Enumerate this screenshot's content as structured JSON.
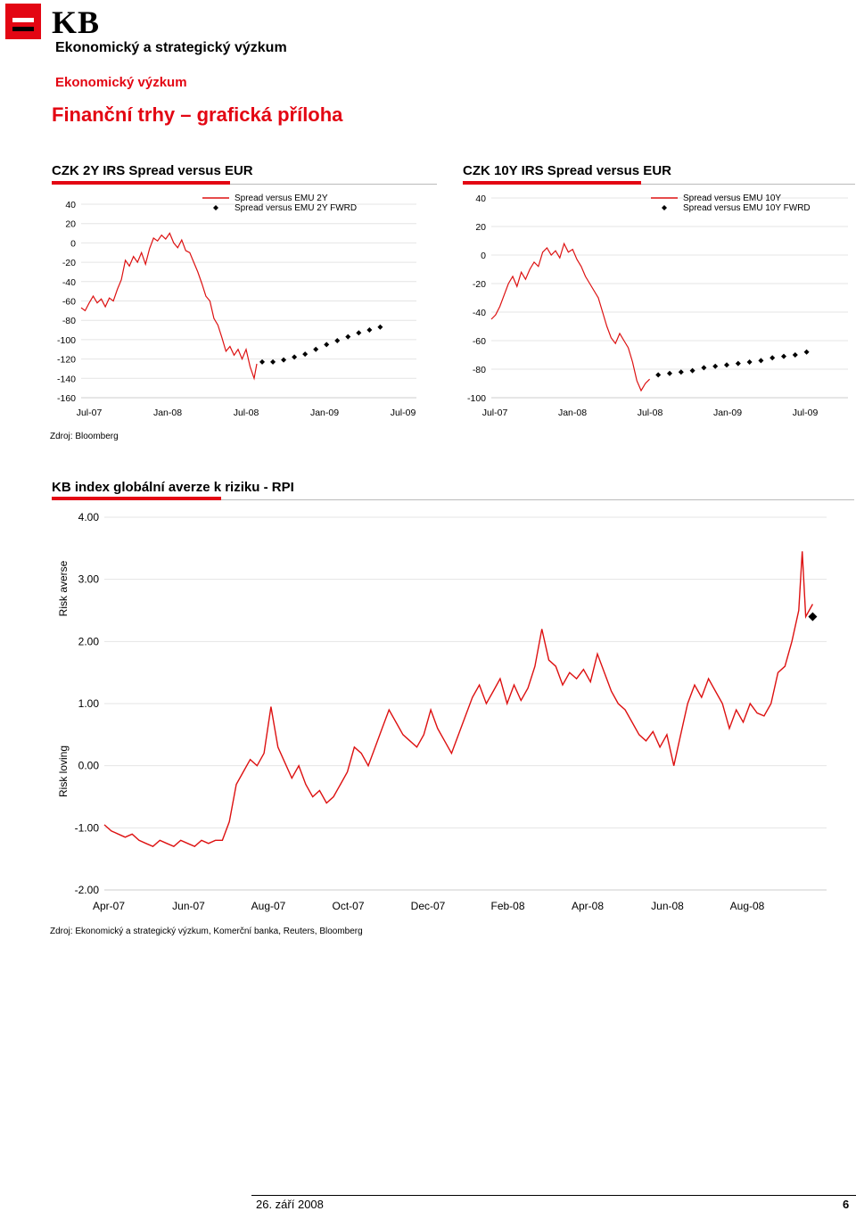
{
  "header": {
    "logo": "KB",
    "dept": "Ekonomický a strategický výzkum",
    "subdept": "Ekonomický výzkum",
    "title": "Finanční trhy – grafická příloha"
  },
  "colors": {
    "accent": "#e30613",
    "series": "#dd1111",
    "fwrd": "#000000"
  },
  "charts": {
    "left_title": "CZK 2Y IRS Spread versus EUR",
    "right_title": "CZK 10Y IRS Spread versus EUR",
    "bottom_title": "KB index globální averze k riziku - RPI",
    "source_top": "Zdroj: Bloomberg",
    "source_bottom": "Zdroj: Ekonomický a strategický výzkum, Komerční banka, Reuters, Bloomberg"
  },
  "footer": {
    "date": "26. září 2008",
    "page": "6"
  },
  "chart_data": [
    {
      "type": "line",
      "title": "CZK 2Y IRS Spread versus EUR",
      "x_ticks": [
        "Jul-07",
        "Jan-08",
        "Jul-08",
        "Jan-09",
        "Jul-09"
      ],
      "y_ticks": [
        "40",
        "20",
        "0",
        "-20",
        "-40",
        "-60",
        "-80",
        "-100",
        "-120",
        "-140",
        "-160"
      ],
      "ylim": [
        -160,
        40
      ],
      "grid": true,
      "legend_position": "top-right",
      "series": [
        {
          "name": "Spread versus EMU 2Y",
          "style": "line",
          "points": [
            [
              0,
              -67
            ],
            [
              0.03,
              -70
            ],
            [
              0.06,
              -62
            ],
            [
              0.09,
              -55
            ],
            [
              0.12,
              -62
            ],
            [
              0.15,
              -58
            ],
            [
              0.18,
              -66
            ],
            [
              0.21,
              -57
            ],
            [
              0.24,
              -60
            ],
            [
              0.27,
              -48
            ],
            [
              0.3,
              -38
            ],
            [
              0.33,
              -18
            ],
            [
              0.36,
              -24
            ],
            [
              0.39,
              -14
            ],
            [
              0.42,
              -20
            ],
            [
              0.45,
              -10
            ],
            [
              0.48,
              -22
            ],
            [
              0.51,
              -6
            ],
            [
              0.54,
              5
            ],
            [
              0.57,
              2
            ],
            [
              0.6,
              8
            ],
            [
              0.63,
              4
            ],
            [
              0.66,
              10
            ],
            [
              0.69,
              0
            ],
            [
              0.72,
              -5
            ],
            [
              0.75,
              3
            ],
            [
              0.78,
              -8
            ],
            [
              0.81,
              -10
            ],
            [
              0.84,
              -20
            ],
            [
              0.87,
              -30
            ],
            [
              0.9,
              -42
            ],
            [
              0.93,
              -55
            ],
            [
              0.96,
              -60
            ],
            [
              0.99,
              -78
            ],
            [
              1.02,
              -85
            ],
            [
              1.05,
              -98
            ],
            [
              1.08,
              -112
            ],
            [
              1.11,
              -107
            ],
            [
              1.14,
              -116
            ],
            [
              1.17,
              -110
            ],
            [
              1.2,
              -120
            ],
            [
              1.23,
              -110
            ],
            [
              1.26,
              -128
            ],
            [
              1.29,
              -140
            ],
            [
              1.31,
              -125
            ]
          ]
        },
        {
          "name": "Spread versus EMU 2Y FWRD",
          "style": "marker",
          "points": [
            [
              1.35,
              -123
            ],
            [
              1.43,
              -123
            ],
            [
              1.51,
              -121
            ],
            [
              1.59,
              -118
            ],
            [
              1.67,
              -115
            ],
            [
              1.75,
              -110
            ],
            [
              1.83,
              -105
            ],
            [
              1.91,
              -101
            ],
            [
              1.99,
              -97
            ],
            [
              2.07,
              -93
            ],
            [
              2.15,
              -90
            ],
            [
              2.23,
              -87
            ]
          ]
        }
      ]
    },
    {
      "type": "line",
      "title": "CZK 10Y IRS Spread versus EUR",
      "x_ticks": [
        "Jul-07",
        "Jan-08",
        "Jul-08",
        "Jan-09",
        "Jul-09"
      ],
      "y_ticks": [
        "40",
        "20",
        "0",
        "-20",
        "-40",
        "-60",
        "-80",
        "-100"
      ],
      "ylim": [
        -100,
        40
      ],
      "grid": true,
      "legend_position": "top-right",
      "series": [
        {
          "name": "Spread versus EMU 10Y",
          "style": "line",
          "points": [
            [
              0,
              -45
            ],
            [
              0.03,
              -42
            ],
            [
              0.06,
              -36
            ],
            [
              0.09,
              -28
            ],
            [
              0.12,
              -20
            ],
            [
              0.15,
              -15
            ],
            [
              0.18,
              -22
            ],
            [
              0.21,
              -12
            ],
            [
              0.24,
              -17
            ],
            [
              0.27,
              -10
            ],
            [
              0.3,
              -5
            ],
            [
              0.33,
              -8
            ],
            [
              0.36,
              2
            ],
            [
              0.39,
              5
            ],
            [
              0.42,
              0
            ],
            [
              0.45,
              3
            ],
            [
              0.48,
              -2
            ],
            [
              0.51,
              8
            ],
            [
              0.54,
              2
            ],
            [
              0.57,
              4
            ],
            [
              0.6,
              -3
            ],
            [
              0.63,
              -8
            ],
            [
              0.66,
              -15
            ],
            [
              0.69,
              -20
            ],
            [
              0.72,
              -25
            ],
            [
              0.75,
              -30
            ],
            [
              0.78,
              -40
            ],
            [
              0.81,
              -50
            ],
            [
              0.84,
              -58
            ],
            [
              0.87,
              -62
            ],
            [
              0.9,
              -55
            ],
            [
              0.93,
              -60
            ],
            [
              0.96,
              -65
            ],
            [
              0.99,
              -75
            ],
            [
              1.02,
              -88
            ],
            [
              1.05,
              -95
            ],
            [
              1.08,
              -90
            ],
            [
              1.11,
              -87
            ]
          ]
        },
        {
          "name": "Spread versus EMU 10Y FWRD",
          "style": "marker",
          "points": [
            [
              1.17,
              -84
            ],
            [
              1.25,
              -83
            ],
            [
              1.33,
              -82
            ],
            [
              1.41,
              -81
            ],
            [
              1.49,
              -79
            ],
            [
              1.57,
              -78
            ],
            [
              1.65,
              -77
            ],
            [
              1.73,
              -76
            ],
            [
              1.81,
              -75
            ],
            [
              1.89,
              -74
            ],
            [
              1.97,
              -72
            ],
            [
              2.05,
              -71
            ],
            [
              2.13,
              -70
            ],
            [
              2.21,
              -68
            ]
          ]
        }
      ]
    },
    {
      "type": "line",
      "title": "KB index globální averze k riziku - RPI",
      "x_ticks": [
        "Apr-07",
        "Jun-07",
        "Aug-07",
        "Oct-07",
        "Dec-07",
        "Feb-08",
        "Apr-08",
        "Jun-08",
        "Aug-08"
      ],
      "y_ticks": [
        "4.00",
        "3.00",
        "2.00",
        "1.00",
        "0.00",
        "-1.00",
        "-2.00"
      ],
      "ylim": [
        -2,
        4
      ],
      "grid": true,
      "y_annotations": [
        "Risk averse",
        "Risk loving"
      ],
      "series": [
        {
          "name": "RPI",
          "style": "line",
          "points": [
            [
              0,
              -0.95
            ],
            [
              0.1,
              -1.05
            ],
            [
              0.2,
              -1.1
            ],
            [
              0.3,
              -1.15
            ],
            [
              0.4,
              -1.1
            ],
            [
              0.5,
              -1.2
            ],
            [
              0.6,
              -1.25
            ],
            [
              0.7,
              -1.3
            ],
            [
              0.8,
              -1.2
            ],
            [
              0.9,
              -1.25
            ],
            [
              1.0,
              -1.3
            ],
            [
              1.1,
              -1.2
            ],
            [
              1.2,
              -1.25
            ],
            [
              1.3,
              -1.3
            ],
            [
              1.4,
              -1.2
            ],
            [
              1.5,
              -1.25
            ],
            [
              1.6,
              -1.2
            ],
            [
              1.7,
              -1.2
            ],
            [
              1.8,
              -0.9
            ],
            [
              1.9,
              -0.3
            ],
            [
              2.0,
              -0.1
            ],
            [
              2.1,
              0.1
            ],
            [
              2.2,
              0.0
            ],
            [
              2.3,
              0.2
            ],
            [
              2.4,
              0.95
            ],
            [
              2.5,
              0.3
            ],
            [
              2.6,
              0.05
            ],
            [
              2.7,
              -0.2
            ],
            [
              2.8,
              0.0
            ],
            [
              2.9,
              -0.3
            ],
            [
              3.0,
              -0.5
            ],
            [
              3.1,
              -0.4
            ],
            [
              3.2,
              -0.6
            ],
            [
              3.3,
              -0.5
            ],
            [
              3.4,
              -0.3
            ],
            [
              3.5,
              -0.1
            ],
            [
              3.6,
              0.3
            ],
            [
              3.7,
              0.2
            ],
            [
              3.8,
              0.0
            ],
            [
              3.9,
              0.3
            ],
            [
              4.0,
              0.6
            ],
            [
              4.1,
              0.9
            ],
            [
              4.2,
              0.7
            ],
            [
              4.3,
              0.5
            ],
            [
              4.4,
              0.4
            ],
            [
              4.5,
              0.3
            ],
            [
              4.6,
              0.5
            ],
            [
              4.7,
              0.9
            ],
            [
              4.8,
              0.6
            ],
            [
              4.9,
              0.4
            ],
            [
              5.0,
              0.2
            ],
            [
              5.1,
              0.5
            ],
            [
              5.2,
              0.8
            ],
            [
              5.3,
              1.1
            ],
            [
              5.4,
              1.3
            ],
            [
              5.5,
              1.0
            ],
            [
              5.6,
              1.2
            ],
            [
              5.7,
              1.4
            ],
            [
              5.8,
              1.0
            ],
            [
              5.9,
              1.3
            ],
            [
              6.0,
              1.05
            ],
            [
              6.1,
              1.25
            ],
            [
              6.2,
              1.6
            ],
            [
              6.3,
              2.2
            ],
            [
              6.4,
              1.7
            ],
            [
              6.5,
              1.6
            ],
            [
              6.6,
              1.3
            ],
            [
              6.7,
              1.5
            ],
            [
              6.8,
              1.4
            ],
            [
              6.9,
              1.55
            ],
            [
              7.0,
              1.35
            ],
            [
              7.1,
              1.8
            ],
            [
              7.2,
              1.5
            ],
            [
              7.3,
              1.2
            ],
            [
              7.4,
              1.0
            ],
            [
              7.5,
              0.9
            ],
            [
              7.6,
              0.7
            ],
            [
              7.7,
              0.5
            ],
            [
              7.8,
              0.4
            ],
            [
              7.9,
              0.55
            ],
            [
              8.0,
              0.3
            ],
            [
              8.1,
              0.5
            ],
            [
              8.2,
              0.0
            ],
            [
              8.3,
              0.5
            ],
            [
              8.4,
              1.0
            ],
            [
              8.5,
              1.3
            ],
            [
              8.6,
              1.1
            ],
            [
              8.7,
              1.4
            ],
            [
              8.8,
              1.2
            ],
            [
              8.9,
              1.0
            ],
            [
              9.0,
              0.6
            ],
            [
              9.1,
              0.9
            ],
            [
              9.2,
              0.7
            ],
            [
              9.3,
              1.0
            ],
            [
              9.4,
              0.85
            ],
            [
              9.5,
              0.8
            ],
            [
              9.6,
              1.0
            ],
            [
              9.7,
              1.5
            ],
            [
              9.8,
              1.6
            ],
            [
              9.9,
              2.0
            ],
            [
              10.0,
              2.5
            ],
            [
              10.05,
              3.45
            ],
            [
              10.1,
              2.4
            ],
            [
              10.2,
              2.6
            ]
          ]
        },
        {
          "name": "RPI marker",
          "style": "marker",
          "points": [
            [
              10.2,
              2.4
            ]
          ]
        }
      ]
    }
  ]
}
